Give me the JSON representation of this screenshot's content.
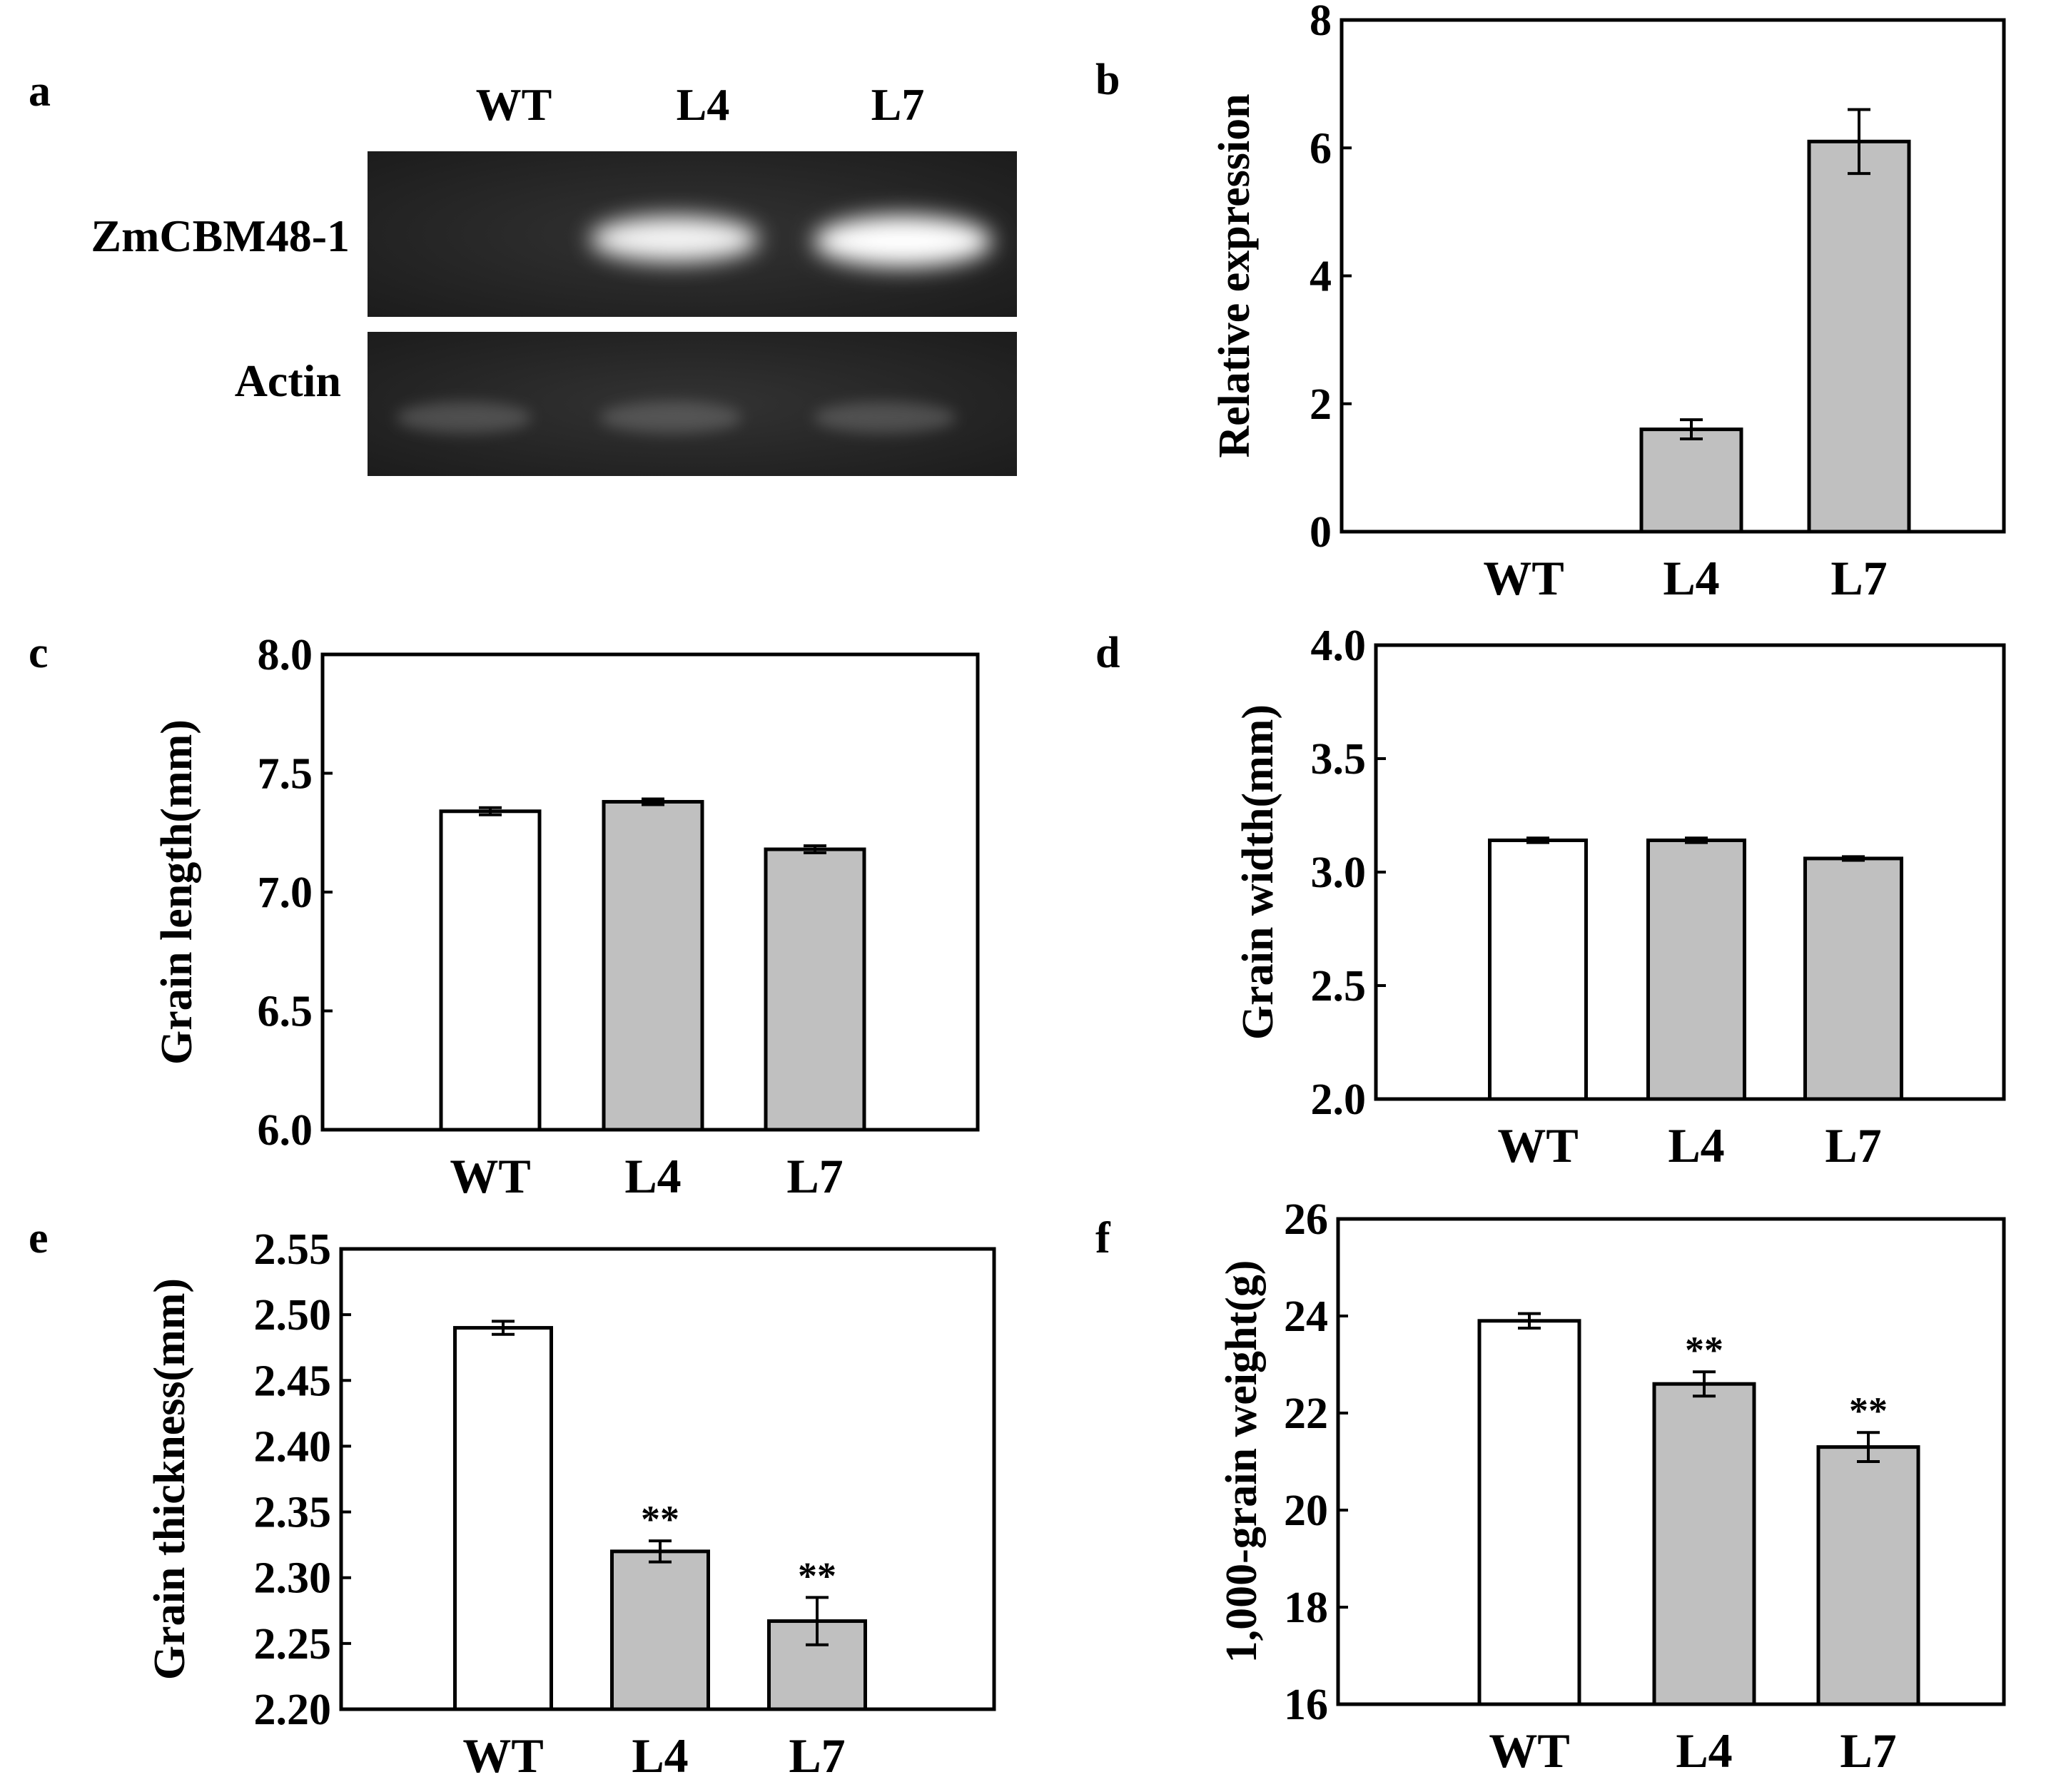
{
  "panel_a": {
    "label": "a",
    "lanes": [
      "WT",
      "L4",
      "L7"
    ],
    "rows": [
      {
        "name": "ZmCBM48-1",
        "band_intensity": [
          0,
          0.95,
          1.0
        ]
      },
      {
        "name": "Actin",
        "band_intensity": [
          0.35,
          0.35,
          0.35
        ]
      }
    ]
  },
  "chart_data": [
    {
      "panel": "b",
      "type": "bar",
      "xlabel": "",
      "ylabel": "Relative expression",
      "categories": [
        "WT",
        "L4",
        "L7"
      ],
      "values": [
        0,
        1.6,
        6.1
      ],
      "errors": [
        0,
        0.15,
        0.5
      ],
      "fills": [
        "#ffffff",
        "#c0c0c0",
        "#c0c0c0"
      ],
      "significance": [
        "",
        "",
        ""
      ],
      "ylim": [
        0,
        8
      ],
      "yticks": [
        "0",
        "2",
        "4",
        "6",
        "8"
      ],
      "ytick_values": [
        0,
        2,
        4,
        6,
        8
      ],
      "grid": false
    },
    {
      "panel": "c",
      "type": "bar",
      "xlabel": "",
      "ylabel": "Grain length(mm)",
      "categories": [
        "WT",
        "L4",
        "L7"
      ],
      "values": [
        7.34,
        7.38,
        7.18
      ],
      "errors": [
        0.015,
        0.012,
        0.015
      ],
      "fills": [
        "#ffffff",
        "#c0c0c0",
        "#c0c0c0"
      ],
      "significance": [
        "",
        "",
        ""
      ],
      "ylim": [
        6.0,
        8.0
      ],
      "yticks": [
        "6.0",
        "6.5",
        "7.0",
        "7.5",
        "8.0"
      ],
      "ytick_values": [
        6.0,
        6.5,
        7.0,
        7.5,
        8.0
      ],
      "grid": false
    },
    {
      "panel": "d",
      "type": "bar",
      "xlabel": "",
      "ylabel": "Grain width(mm)",
      "categories": [
        "WT",
        "L4",
        "L7"
      ],
      "values": [
        3.14,
        3.14,
        3.06
      ],
      "errors": [
        0.01,
        0.01,
        0.008
      ],
      "fills": [
        "#ffffff",
        "#c0c0c0",
        "#c0c0c0"
      ],
      "significance": [
        "",
        "",
        ""
      ],
      "ylim": [
        2.0,
        4.0
      ],
      "yticks": [
        "2.0",
        "2.5",
        "3.0",
        "3.5",
        "4.0"
      ],
      "ytick_values": [
        2.0,
        2.5,
        3.0,
        3.5,
        4.0
      ],
      "grid": false
    },
    {
      "panel": "e",
      "type": "bar",
      "xlabel": "",
      "ylabel": "Grain thickness(mm)",
      "categories": [
        "WT",
        "L4",
        "L7"
      ],
      "values": [
        2.49,
        2.32,
        2.267
      ],
      "errors": [
        0.005,
        0.008,
        0.018
      ],
      "fills": [
        "#ffffff",
        "#c0c0c0",
        "#c0c0c0"
      ],
      "significance": [
        "",
        "**",
        "**"
      ],
      "ylim": [
        2.2,
        2.55
      ],
      "yticks": [
        "2.20",
        "2.25",
        "2.30",
        "2.35",
        "2.40",
        "2.45",
        "2.50",
        "2.55"
      ],
      "ytick_values": [
        2.2,
        2.25,
        2.3,
        2.35,
        2.4,
        2.45,
        2.5,
        2.55
      ],
      "grid": false
    },
    {
      "panel": "f",
      "type": "bar",
      "xlabel": "",
      "ylabel": "1,000-grain weight(g)",
      "categories": [
        "WT",
        "L4",
        "L7"
      ],
      "values": [
        23.9,
        22.6,
        21.3
      ],
      "errors": [
        0.15,
        0.25,
        0.3
      ],
      "fills": [
        "#ffffff",
        "#c0c0c0",
        "#c0c0c0"
      ],
      "significance": [
        "",
        "**",
        "**"
      ],
      "ylim": [
        16,
        26
      ],
      "yticks": [
        "16",
        "18",
        "20",
        "22",
        "24",
        "26"
      ],
      "ytick_values": [
        16,
        18,
        20,
        22,
        24,
        26
      ],
      "grid": false
    }
  ]
}
